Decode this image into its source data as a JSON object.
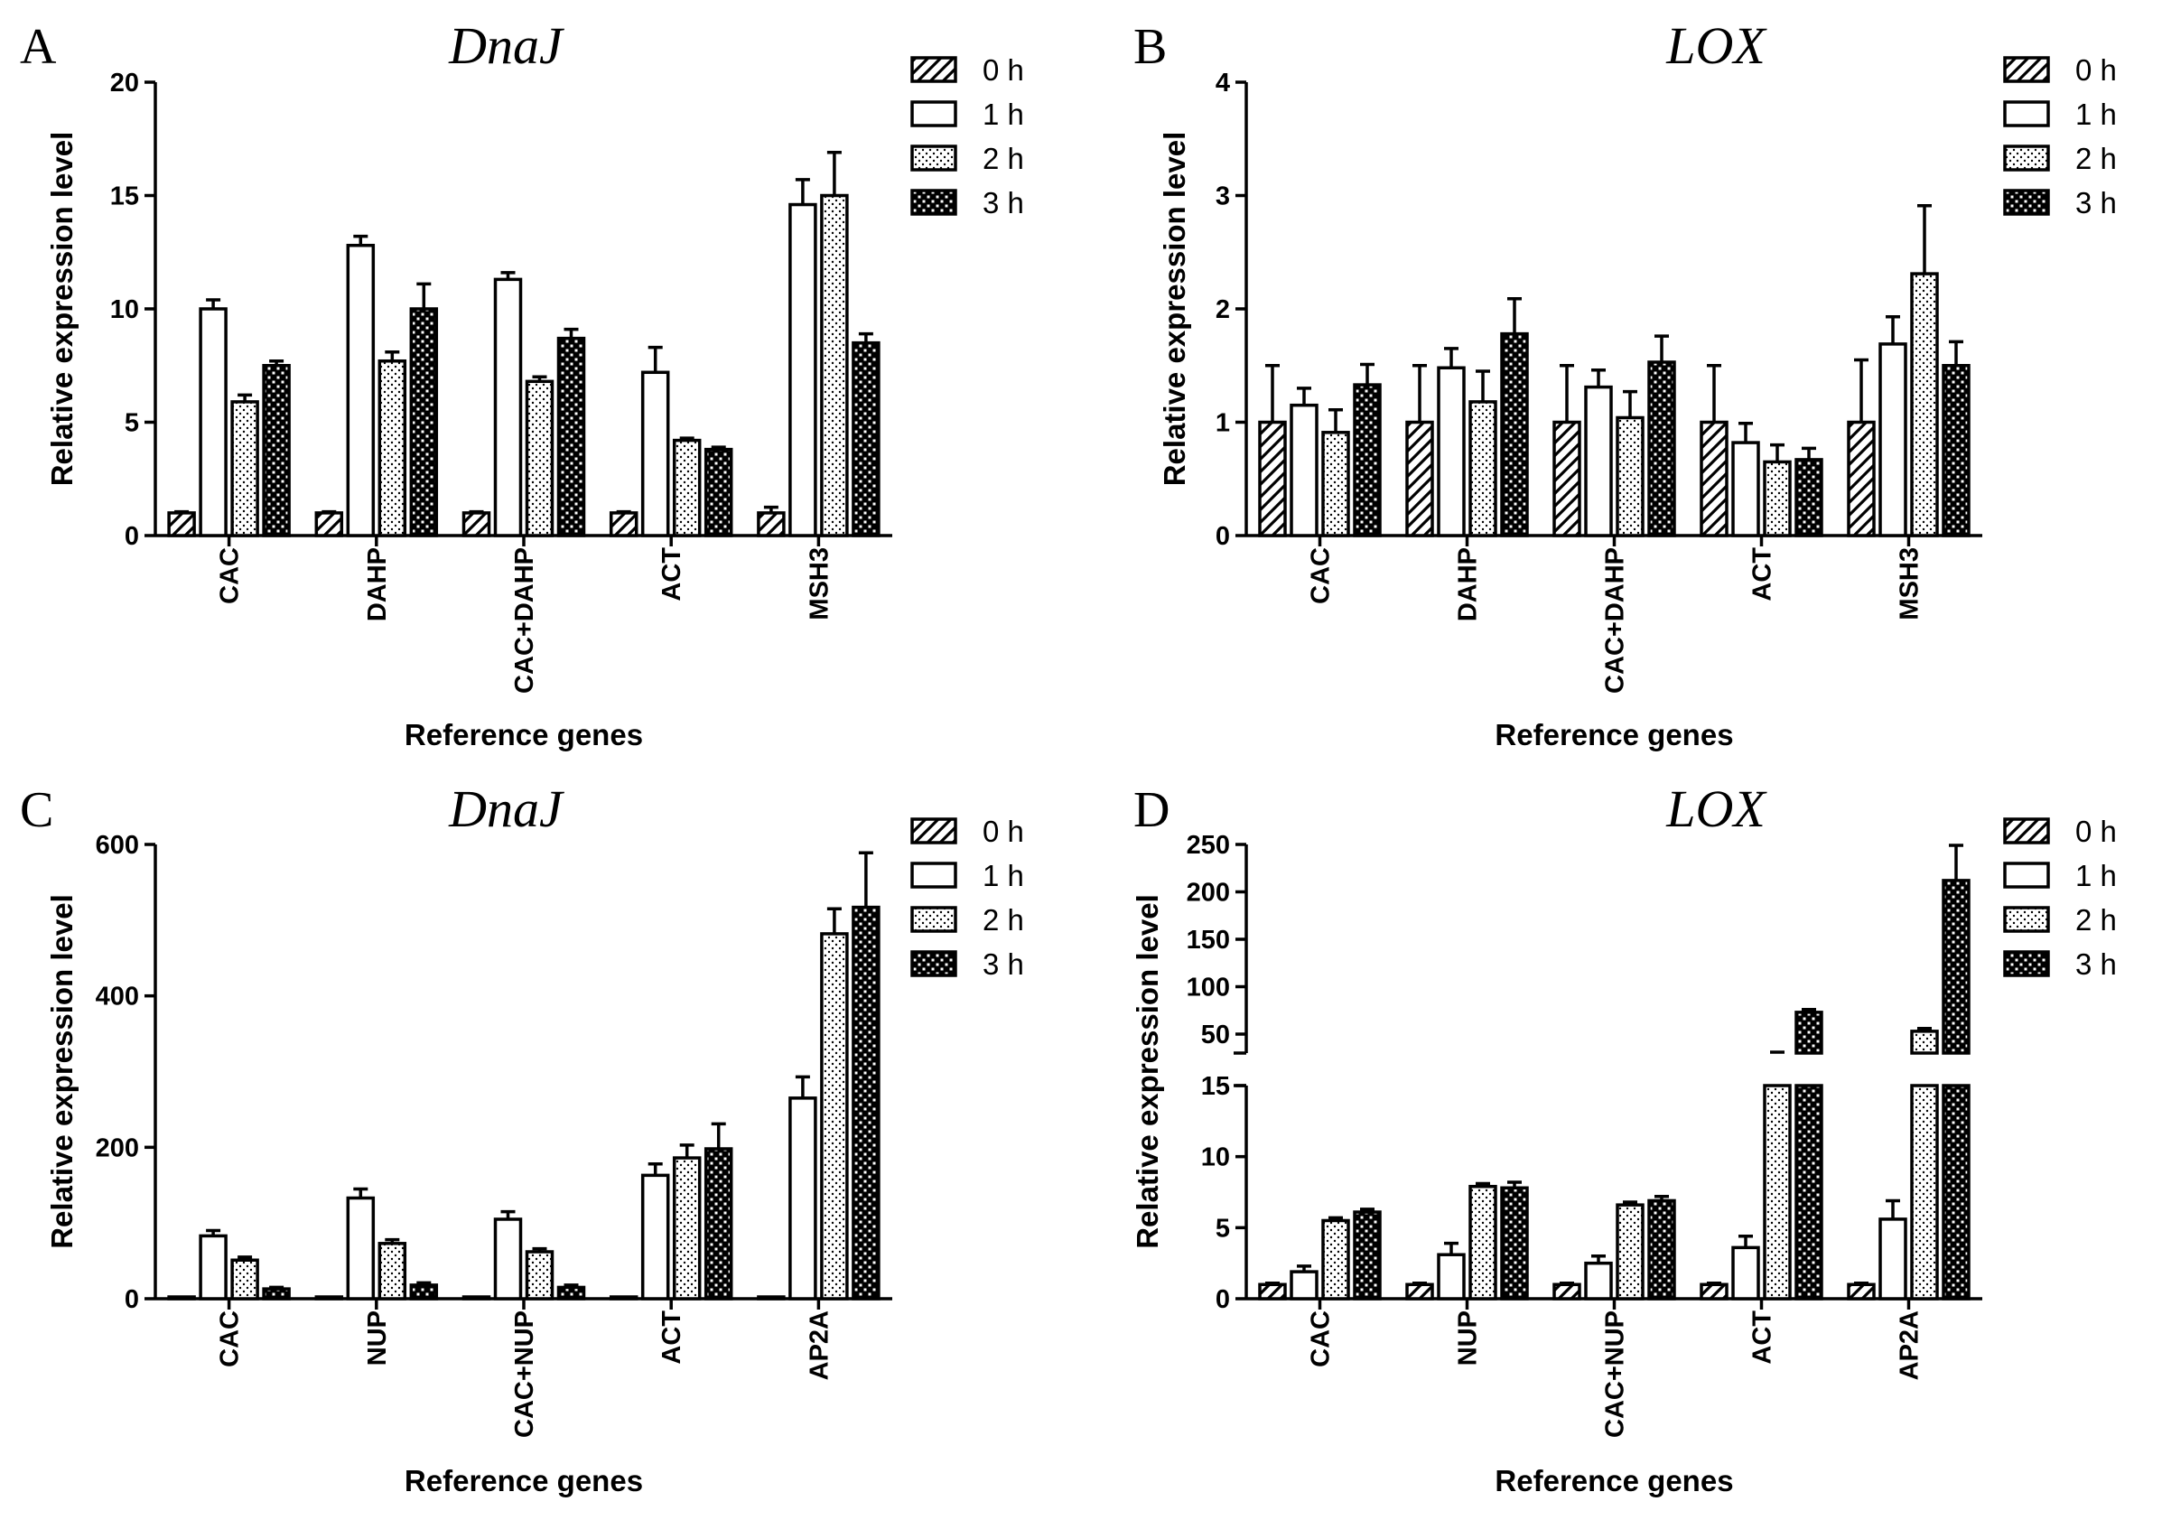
{
  "figure": {
    "legend_labels": [
      "0 h",
      "1 h",
      "2 h",
      "3 h"
    ],
    "xlabel": "Reference genes",
    "ylabel": "Relative expression level"
  },
  "chart_data": [
    {
      "panel": "A",
      "title": "DnaJ",
      "type": "bar",
      "categories": [
        "CAC",
        "DAHP",
        "CAC+DAHP",
        "ACT",
        "MSH3"
      ],
      "xlabel": "Reference genes",
      "ylabel": "Relative expression level",
      "ylim": [
        0,
        20
      ],
      "yticks": [
        0,
        5,
        10,
        15,
        20
      ],
      "legend_position": "top-right",
      "series": [
        {
          "name": "0 h",
          "pattern": "diagonal-hatch",
          "values": [
            1.0,
            1.0,
            1.0,
            1.0,
            1.0
          ],
          "errors": [
            0.05,
            0.05,
            0.05,
            0.05,
            0.25
          ]
        },
        {
          "name": "1 h",
          "pattern": "open",
          "values": [
            10.0,
            12.8,
            11.3,
            7.2,
            14.6
          ],
          "errors": [
            0.4,
            0.4,
            0.3,
            1.1,
            1.1
          ]
        },
        {
          "name": "2 h",
          "pattern": "dotted",
          "values": [
            5.9,
            7.7,
            6.8,
            4.2,
            15.0
          ],
          "errors": [
            0.3,
            0.4,
            0.2,
            0.1,
            1.9
          ]
        },
        {
          "name": "3 h",
          "pattern": "checkered",
          "values": [
            7.5,
            10.0,
            8.7,
            3.8,
            8.5
          ],
          "errors": [
            0.2,
            1.1,
            0.4,
            0.1,
            0.4
          ]
        }
      ]
    },
    {
      "panel": "B",
      "title": "LOX",
      "type": "bar",
      "categories": [
        "CAC",
        "DAHP",
        "CAC+DAHP",
        "ACT",
        "MSH3"
      ],
      "xlabel": "Reference genes",
      "ylabel": "Relative expression level",
      "ylim": [
        0,
        4
      ],
      "yticks": [
        0,
        1,
        2,
        3,
        4
      ],
      "legend_position": "top-right",
      "series": [
        {
          "name": "0 h",
          "pattern": "diagonal-hatch",
          "values": [
            1.0,
            1.0,
            1.0,
            1.0,
            1.0
          ],
          "errors": [
            0.5,
            0.5,
            0.5,
            0.5,
            0.55
          ]
        },
        {
          "name": "1 h",
          "pattern": "open",
          "values": [
            1.15,
            1.48,
            1.31,
            0.82,
            1.69
          ],
          "errors": [
            0.15,
            0.17,
            0.15,
            0.17,
            0.24
          ]
        },
        {
          "name": "2 h",
          "pattern": "dotted",
          "values": [
            0.91,
            1.18,
            1.04,
            0.65,
            2.31
          ],
          "errors": [
            0.2,
            0.27,
            0.23,
            0.15,
            0.6
          ]
        },
        {
          "name": "3 h",
          "pattern": "checkered",
          "values": [
            1.33,
            1.78,
            1.53,
            0.67,
            1.5
          ],
          "errors": [
            0.18,
            0.31,
            0.23,
            0.1,
            0.21
          ]
        }
      ]
    },
    {
      "panel": "C",
      "title": "DnaJ",
      "type": "bar",
      "categories": [
        "CAC",
        "NUP",
        "CAC+NUP",
        "ACT",
        "AP2A"
      ],
      "xlabel": "Reference genes",
      "ylabel": "Relative expression level",
      "ylim": [
        0,
        600
      ],
      "yticks": [
        0,
        200,
        400,
        600
      ],
      "legend_position": "top-right",
      "series": [
        {
          "name": "0 h",
          "pattern": "diagonal-hatch",
          "values": [
            1,
            1,
            1,
            1,
            1
          ],
          "errors": [
            0,
            0,
            0,
            0,
            0
          ]
        },
        {
          "name": "1 h",
          "pattern": "open",
          "values": [
            83,
            133,
            105,
            163,
            265
          ],
          "errors": [
            7,
            12,
            10,
            15,
            28
          ]
        },
        {
          "name": "2 h",
          "pattern": "dotted",
          "values": [
            51,
            73,
            62,
            186,
            482
          ],
          "errors": [
            4,
            5,
            4,
            17,
            33
          ]
        },
        {
          "name": "3 h",
          "pattern": "checkered",
          "values": [
            13,
            18,
            15,
            198,
            517
          ],
          "errors": [
            2,
            3,
            3,
            33,
            72
          ]
        }
      ]
    },
    {
      "panel": "D",
      "title": "LOX",
      "type": "bar",
      "categories": [
        "CAC",
        "NUP",
        "CAC+NUP",
        "ACT",
        "AP2A"
      ],
      "xlabel": "Reference genes",
      "ylabel": "Relative expression level",
      "axis_break": {
        "lower_range": [
          0,
          15
        ],
        "upper_range": [
          30,
          250
        ]
      },
      "yticks_lower": [
        0,
        5,
        10,
        15
      ],
      "yticks_upper": [
        50,
        100,
        150,
        200,
        250
      ],
      "legend_position": "top-right",
      "series": [
        {
          "name": "0 h",
          "pattern": "diagonal-hatch",
          "values": [
            1.0,
            1.0,
            1.0,
            1.0,
            1.0
          ],
          "errors": [
            0.1,
            0.1,
            0.1,
            0.1,
            0.1
          ]
        },
        {
          "name": "1 h",
          "pattern": "open",
          "values": [
            1.9,
            3.1,
            2.5,
            3.6,
            5.6
          ],
          "errors": [
            0.4,
            0.8,
            0.5,
            0.8,
            1.3
          ]
        },
        {
          "name": "2 h",
          "pattern": "dotted",
          "values": [
            5.5,
            7.9,
            6.6,
            30,
            53
          ],
          "errors": [
            0.2,
            0.2,
            0.2,
            1,
            3
          ]
        },
        {
          "name": "3 h",
          "pattern": "checkered",
          "values": [
            6.1,
            7.8,
            6.9,
            73,
            212
          ],
          "errors": [
            0.2,
            0.4,
            0.3,
            3,
            37
          ]
        }
      ]
    }
  ]
}
